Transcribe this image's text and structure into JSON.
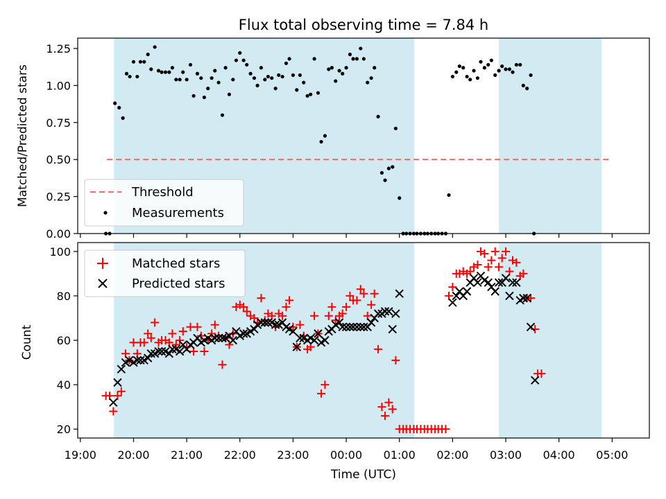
{
  "title": "Flux total observing time = 7.84 h",
  "colors": {
    "shade": "#add8e6",
    "threshold": "#ff6666",
    "measure": "#000000",
    "matched": "#ff0000",
    "predicted": "#000000"
  },
  "chart_data": [
    {
      "type": "scatter",
      "name": "top",
      "ylabel": "Matched/Predicted stars",
      "ylim": [
        0,
        1.32
      ],
      "yticks": [
        0.0,
        0.25,
        0.5,
        0.75,
        1.0,
        1.25
      ],
      "ytick_labels": [
        "0.00",
        "0.25",
        "0.50",
        "0.75",
        "1.00",
        "1.25"
      ],
      "legend": [
        "Threshold",
        "Measurements"
      ],
      "legend_position": "lower-left",
      "threshold": {
        "value": 0.5,
        "x_start": 19.5,
        "x_end": 29.0
      },
      "shaded_intervals": [
        [
          19.63,
          25.28
        ],
        [
          26.87,
          28.8
        ]
      ],
      "measurements": [
        [
          19.48,
          0.0
        ],
        [
          19.55,
          0.0
        ],
        [
          19.65,
          0.88
        ],
        [
          19.73,
          0.85
        ],
        [
          19.8,
          0.78
        ],
        [
          19.87,
          1.08
        ],
        [
          19.93,
          1.06
        ],
        [
          20.0,
          1.16
        ],
        [
          20.07,
          1.06
        ],
        [
          20.13,
          1.16
        ],
        [
          20.2,
          1.16
        ],
        [
          20.27,
          1.21
        ],
        [
          20.33,
          1.11
        ],
        [
          20.4,
          1.26
        ],
        [
          20.47,
          1.1
        ],
        [
          20.53,
          1.09
        ],
        [
          20.6,
          1.09
        ],
        [
          20.67,
          1.09
        ],
        [
          20.73,
          1.12
        ],
        [
          20.8,
          1.04
        ],
        [
          20.87,
          1.04
        ],
        [
          20.93,
          1.09
        ],
        [
          21.0,
          1.04
        ],
        [
          21.07,
          1.14
        ],
        [
          21.13,
          0.93
        ],
        [
          21.2,
          1.08
        ],
        [
          21.27,
          1.05
        ],
        [
          21.33,
          0.92
        ],
        [
          21.4,
          0.98
        ],
        [
          21.47,
          1.05
        ],
        [
          21.53,
          1.1
        ],
        [
          21.6,
          1.02
        ],
        [
          21.67,
          0.8
        ],
        [
          21.73,
          1.12
        ],
        [
          21.8,
          0.94
        ],
        [
          21.87,
          1.04
        ],
        [
          21.93,
          1.17
        ],
        [
          22.0,
          1.22
        ],
        [
          22.07,
          1.17
        ],
        [
          22.13,
          1.14
        ],
        [
          22.2,
          1.08
        ],
        [
          22.27,
          1.05
        ],
        [
          22.33,
          1.0
        ],
        [
          22.4,
          1.12
        ],
        [
          22.47,
          1.04
        ],
        [
          22.53,
          1.06
        ],
        [
          22.6,
          1.05
        ],
        [
          22.67,
          0.98
        ],
        [
          22.73,
          1.07
        ],
        [
          22.8,
          1.06
        ],
        [
          22.87,
          1.15
        ],
        [
          22.93,
          1.18
        ],
        [
          23.0,
          1.07
        ],
        [
          23.07,
          0.97
        ],
        [
          23.13,
          1.07
        ],
        [
          23.2,
          1.02
        ],
        [
          23.27,
          0.93
        ],
        [
          23.33,
          0.94
        ],
        [
          23.4,
          1.18
        ],
        [
          23.47,
          0.95
        ],
        [
          23.53,
          0.62
        ],
        [
          23.6,
          0.66
        ],
        [
          23.67,
          1.11
        ],
        [
          23.73,
          1.12
        ],
        [
          23.8,
          1.03
        ],
        [
          23.87,
          1.1
        ],
        [
          23.93,
          1.08
        ],
        [
          24.0,
          1.12
        ],
        [
          24.07,
          1.21
        ],
        [
          24.13,
          1.18
        ],
        [
          24.2,
          1.18
        ],
        [
          24.27,
          1.25
        ],
        [
          24.33,
          1.18
        ],
        [
          24.4,
          1.02
        ],
        [
          24.47,
          1.05
        ],
        [
          24.53,
          1.12
        ],
        [
          24.6,
          0.79
        ],
        [
          24.67,
          0.41
        ],
        [
          24.73,
          0.36
        ],
        [
          24.8,
          0.44
        ],
        [
          24.87,
          0.45
        ],
        [
          24.93,
          0.71
        ],
        [
          25.0,
          0.24
        ],
        [
          25.07,
          0.0
        ],
        [
          25.13,
          0.0
        ],
        [
          25.2,
          0.0
        ],
        [
          25.27,
          0.0
        ],
        [
          25.33,
          0.0
        ],
        [
          25.4,
          0.0
        ],
        [
          25.47,
          0.0
        ],
        [
          25.53,
          0.0
        ],
        [
          25.6,
          0.0
        ],
        [
          25.67,
          0.0
        ],
        [
          25.73,
          0.0
        ],
        [
          25.8,
          0.0
        ],
        [
          25.87,
          0.0
        ],
        [
          25.93,
          0.26
        ],
        [
          26.0,
          1.06
        ],
        [
          26.07,
          1.09
        ],
        [
          26.13,
          1.13
        ],
        [
          26.2,
          1.12
        ],
        [
          26.27,
          1.06
        ],
        [
          26.33,
          1.04
        ],
        [
          26.4,
          1.1
        ],
        [
          26.47,
          1.05
        ],
        [
          26.53,
          1.16
        ],
        [
          26.6,
          1.12
        ],
        [
          26.67,
          1.14
        ],
        [
          26.73,
          1.17
        ],
        [
          26.8,
          1.07
        ],
        [
          26.87,
          1.1
        ],
        [
          26.93,
          1.13
        ],
        [
          27.0,
          1.11
        ],
        [
          27.07,
          1.11
        ],
        [
          27.13,
          1.09
        ],
        [
          27.2,
          1.14
        ],
        [
          27.27,
          1.14
        ],
        [
          27.33,
          1.0
        ],
        [
          27.4,
          0.98
        ],
        [
          27.47,
          1.07
        ],
        [
          27.53,
          0.0
        ]
      ]
    },
    {
      "type": "scatter",
      "name": "bottom",
      "xlabel": "Time (UTC)",
      "ylabel": "Count",
      "ylim": [
        16,
        104
      ],
      "yticks": [
        20,
        40,
        60,
        80,
        100
      ],
      "xlim": [
        18.95,
        29.7
      ],
      "xticks": [
        19,
        20,
        21,
        22,
        23,
        24,
        25,
        26,
        27,
        28,
        29
      ],
      "xtick_labels": [
        "19:00",
        "20:00",
        "21:00",
        "22:00",
        "23:00",
        "00:00",
        "01:00",
        "02:00",
        "03:00",
        "04:00",
        "05:00"
      ],
      "legend": [
        "Matched stars",
        "Predicted stars"
      ],
      "legend_position": "upper-left",
      "matched": [
        [
          19.48,
          35
        ],
        [
          19.55,
          35
        ],
        [
          19.62,
          28
        ],
        [
          19.7,
          35
        ],
        [
          19.77,
          37
        ],
        [
          19.85,
          54
        ],
        [
          19.92,
          51
        ],
        [
          20.0,
          59
        ],
        [
          20.07,
          54
        ],
        [
          20.13,
          59
        ],
        [
          20.2,
          59
        ],
        [
          20.27,
          63
        ],
        [
          20.33,
          61
        ],
        [
          20.4,
          68
        ],
        [
          20.47,
          59
        ],
        [
          20.53,
          60
        ],
        [
          20.6,
          60
        ],
        [
          20.67,
          59
        ],
        [
          20.73,
          63
        ],
        [
          20.8,
          58
        ],
        [
          20.87,
          60
        ],
        [
          20.93,
          64
        ],
        [
          21.0,
          57
        ],
        [
          21.07,
          66
        ],
        [
          21.13,
          55
        ],
        [
          21.2,
          66
        ],
        [
          21.27,
          62
        ],
        [
          21.33,
          55
        ],
        [
          21.4,
          60
        ],
        [
          21.47,
          63
        ],
        [
          21.53,
          67
        ],
        [
          21.6,
          62
        ],
        [
          21.67,
          49
        ],
        [
          21.73,
          61
        ],
        [
          21.8,
          58
        ],
        [
          21.87,
          63
        ],
        [
          21.93,
          75
        ],
        [
          22.0,
          76
        ],
        [
          22.07,
          75
        ],
        [
          22.13,
          73
        ],
        [
          22.2,
          71
        ],
        [
          22.27,
          70
        ],
        [
          22.33,
          68
        ],
        [
          22.4,
          79
        ],
        [
          22.47,
          69
        ],
        [
          22.53,
          72
        ],
        [
          22.6,
          71
        ],
        [
          22.67,
          66
        ],
        [
          22.73,
          72
        ],
        [
          22.8,
          71
        ],
        [
          22.87,
          75
        ],
        [
          22.93,
          78
        ],
        [
          23.0,
          66
        ],
        [
          23.07,
          57
        ],
        [
          23.13,
          67
        ],
        [
          23.2,
          62
        ],
        [
          23.27,
          56
        ],
        [
          23.33,
          57
        ],
        [
          23.4,
          71
        ],
        [
          23.47,
          63
        ],
        [
          23.53,
          36
        ],
        [
          23.6,
          40
        ],
        [
          23.67,
          71
        ],
        [
          23.73,
          75
        ],
        [
          23.8,
          69
        ],
        [
          23.87,
          71
        ],
        [
          23.93,
          72
        ],
        [
          24.0,
          75
        ],
        [
          24.07,
          80
        ],
        [
          24.13,
          78
        ],
        [
          24.2,
          78
        ],
        [
          24.27,
          83
        ],
        [
          24.33,
          81
        ],
        [
          24.4,
          71
        ],
        [
          24.47,
          76
        ],
        [
          24.53,
          81
        ],
        [
          24.6,
          56
        ],
        [
          24.67,
          30
        ],
        [
          24.73,
          26
        ],
        [
          24.8,
          32
        ],
        [
          24.87,
          29
        ],
        [
          24.93,
          51
        ],
        [
          25.0,
          20
        ],
        [
          25.07,
          20
        ],
        [
          25.13,
          20
        ],
        [
          25.2,
          20
        ],
        [
          25.27,
          20
        ],
        [
          25.33,
          20
        ],
        [
          25.4,
          20
        ],
        [
          25.47,
          20
        ],
        [
          25.53,
          20
        ],
        [
          25.6,
          20
        ],
        [
          25.67,
          20
        ],
        [
          25.73,
          20
        ],
        [
          25.8,
          20
        ],
        [
          25.87,
          20
        ],
        [
          25.93,
          80
        ],
        [
          26.0,
          84
        ],
        [
          26.07,
          90
        ],
        [
          26.13,
          90
        ],
        [
          26.2,
          91
        ],
        [
          26.27,
          90
        ],
        [
          26.33,
          91
        ],
        [
          26.4,
          93
        ],
        [
          26.47,
          94
        ],
        [
          26.53,
          100
        ],
        [
          26.6,
          99
        ],
        [
          26.67,
          93
        ],
        [
          26.73,
          96
        ],
        [
          26.8,
          100
        ],
        [
          26.87,
          93
        ],
        [
          26.93,
          97
        ],
        [
          27.0,
          100
        ],
        [
          27.07,
          91
        ],
        [
          27.13,
          96
        ],
        [
          27.2,
          95
        ],
        [
          27.27,
          89
        ],
        [
          27.33,
          90
        ],
        [
          27.4,
          79
        ],
        [
          27.47,
          79
        ],
        [
          27.55,
          65
        ],
        [
          27.6,
          45
        ],
        [
          27.67,
          45
        ]
      ],
      "predicted": [
        [
          19.62,
          32
        ],
        [
          19.7,
          41
        ],
        [
          19.77,
          47
        ],
        [
          19.85,
          50
        ],
        [
          19.92,
          51
        ],
        [
          20.0,
          50
        ],
        [
          20.07,
          51
        ],
        [
          20.13,
          51
        ],
        [
          20.2,
          51
        ],
        [
          20.27,
          52
        ],
        [
          20.33,
          54
        ],
        [
          20.4,
          54
        ],
        [
          20.47,
          55
        ],
        [
          20.53,
          55
        ],
        [
          20.6,
          55
        ],
        [
          20.67,
          54
        ],
        [
          20.73,
          56
        ],
        [
          20.8,
          56
        ],
        [
          20.87,
          55
        ],
        [
          20.93,
          58
        ],
        [
          21.0,
          56
        ],
        [
          21.07,
          58
        ],
        [
          21.13,
          59
        ],
        [
          21.2,
          61
        ],
        [
          21.27,
          59
        ],
        [
          21.33,
          60
        ],
        [
          21.4,
          61
        ],
        [
          21.47,
          60
        ],
        [
          21.53,
          61
        ],
        [
          21.6,
          61
        ],
        [
          21.67,
          61
        ],
        [
          21.73,
          61
        ],
        [
          21.8,
          62
        ],
        [
          21.87,
          60
        ],
        [
          21.93,
          64
        ],
        [
          22.0,
          62
        ],
        [
          22.07,
          63
        ],
        [
          22.13,
          63
        ],
        [
          22.2,
          64
        ],
        [
          22.27,
          65
        ],
        [
          22.33,
          67
        ],
        [
          22.4,
          68
        ],
        [
          22.47,
          68
        ],
        [
          22.53,
          68
        ],
        [
          22.6,
          68
        ],
        [
          22.67,
          67
        ],
        [
          22.73,
          67
        ],
        [
          22.8,
          68
        ],
        [
          22.87,
          66
        ],
        [
          22.93,
          65
        ],
        [
          23.0,
          64
        ],
        [
          23.07,
          57
        ],
        [
          23.13,
          61
        ],
        [
          23.2,
          61
        ],
        [
          23.27,
          60
        ],
        [
          23.33,
          61
        ],
        [
          23.4,
          60
        ],
        [
          23.47,
          63
        ],
        [
          23.53,
          59
        ],
        [
          23.6,
          60
        ],
        [
          23.67,
          64
        ],
        [
          23.73,
          65
        ],
        [
          23.8,
          67
        ],
        [
          23.87,
          68
        ],
        [
          23.93,
          66
        ],
        [
          24.0,
          66
        ],
        [
          24.07,
          66
        ],
        [
          24.13,
          66
        ],
        [
          24.2,
          66
        ],
        [
          24.27,
          66
        ],
        [
          24.33,
          66
        ],
        [
          24.4,
          66
        ],
        [
          24.47,
          68
        ],
        [
          24.53,
          70
        ],
        [
          24.6,
          72
        ],
        [
          24.67,
          72
        ],
        [
          24.73,
          73
        ],
        [
          24.8,
          73
        ],
        [
          24.87,
          65
        ],
        [
          24.93,
          72
        ],
        [
          25.0,
          81
        ],
        [
          26.0,
          77
        ],
        [
          26.07,
          80
        ],
        [
          26.13,
          82
        ],
        [
          26.2,
          80
        ],
        [
          26.27,
          82
        ],
        [
          26.33,
          86
        ],
        [
          26.4,
          88
        ],
        [
          26.47,
          86
        ],
        [
          26.53,
          89
        ],
        [
          26.6,
          87
        ],
        [
          26.67,
          86
        ],
        [
          26.73,
          84
        ],
        [
          26.8,
          82
        ],
        [
          26.87,
          86
        ],
        [
          26.93,
          86
        ],
        [
          27.0,
          88
        ],
        [
          27.07,
          80
        ],
        [
          27.13,
          86
        ],
        [
          27.2,
          86
        ],
        [
          27.27,
          78
        ],
        [
          27.33,
          79
        ],
        [
          27.4,
          79
        ],
        [
          27.47,
          66
        ],
        [
          27.55,
          42
        ]
      ]
    }
  ]
}
